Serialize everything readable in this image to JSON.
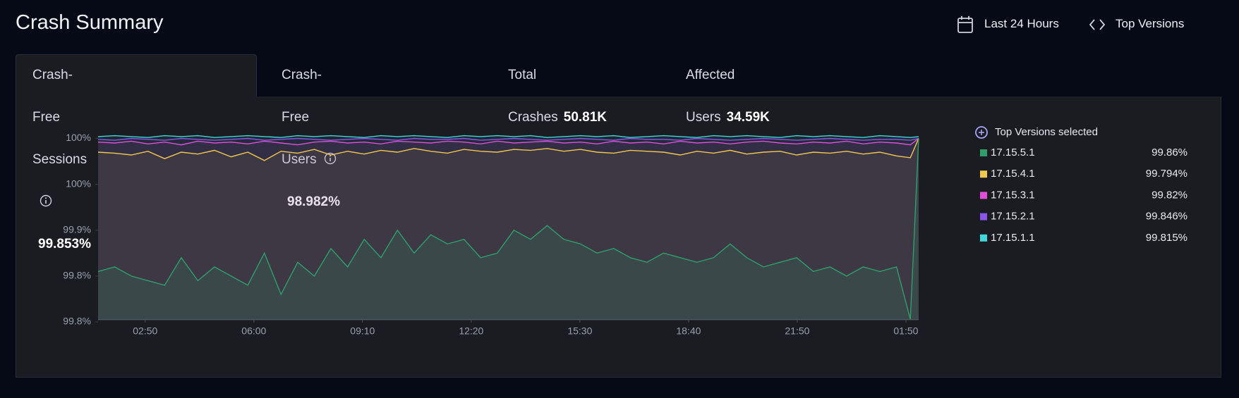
{
  "header": {
    "title": "Crash Summary",
    "time_range": "Last 24 Hours",
    "versions_button": "Top Versions"
  },
  "tabs": [
    {
      "label": "Crash-Free Sessions",
      "value": "99.853%"
    },
    {
      "label": "Crash-Free Users",
      "value": "98.982%"
    },
    {
      "label": "Total Crashes",
      "value": "50.81K"
    },
    {
      "label": "Affected Users",
      "value": "34.59K"
    }
  ],
  "legend_title": "Top Versions selected",
  "chart_data": {
    "type": "area",
    "x": [
      0,
      30,
      60,
      90,
      120,
      150,
      180,
      210,
      240,
      270,
      300,
      330,
      360,
      390,
      420,
      450,
      480,
      510,
      540,
      570,
      600,
      630,
      660,
      690,
      720,
      750,
      780,
      810,
      840,
      870,
      900,
      930,
      960,
      990,
      1020,
      1050,
      1080,
      1110,
      1140,
      1170,
      1200,
      1230,
      1260,
      1290,
      1320,
      1350,
      1380,
      1410,
      1440,
      1465,
      1480
    ],
    "xlim": [
      0,
      1480
    ],
    "xticks": [
      {
        "value": 85,
        "label": "02:50"
      },
      {
        "value": 281,
        "label": "06:00"
      },
      {
        "value": 477,
        "label": "09:10"
      },
      {
        "value": 673,
        "label": "12:20"
      },
      {
        "value": 869,
        "label": "15:30"
      },
      {
        "value": 1065,
        "label": "18:40"
      },
      {
        "value": 1261,
        "label": "21:50"
      },
      {
        "value": 1457,
        "label": "01:50"
      }
    ],
    "ylim": [
      99.8,
      100.005
    ],
    "yticks": [
      {
        "value": 100,
        "label": "100%"
      },
      {
        "value": 99.95,
        "label": "100%"
      },
      {
        "value": 99.9,
        "label": "99.9%"
      },
      {
        "value": 99.85,
        "label": "99.8%"
      },
      {
        "value": 99.8,
        "label": "99.8%"
      }
    ],
    "series": [
      {
        "name": "17.15.5.1",
        "color": "#2e9e6a",
        "legend_value": "99.86%",
        "values": [
          99.855,
          99.86,
          99.85,
          99.845,
          99.84,
          99.87,
          99.845,
          99.86,
          99.85,
          99.84,
          99.875,
          99.83,
          99.865,
          99.85,
          99.88,
          99.86,
          99.89,
          99.87,
          99.9,
          99.875,
          99.895,
          99.885,
          99.89,
          99.87,
          99.875,
          99.9,
          99.89,
          99.905,
          99.89,
          99.885,
          99.875,
          99.88,
          99.87,
          99.865,
          99.875,
          99.87,
          99.865,
          99.87,
          99.885,
          99.87,
          99.86,
          99.865,
          99.87,
          99.855,
          99.86,
          99.85,
          99.86,
          99.855,
          99.86,
          99.803,
          100
        ]
      },
      {
        "name": "17.15.4.1",
        "color": "#f2c94c",
        "legend_value": "99.794%",
        "values": [
          99.985,
          99.984,
          99.982,
          99.986,
          99.978,
          99.985,
          99.983,
          99.987,
          99.98,
          99.985,
          99.976,
          99.986,
          99.984,
          99.988,
          99.982,
          99.986,
          99.983,
          99.987,
          99.985,
          99.989,
          99.986,
          99.984,
          99.988,
          99.986,
          99.985,
          99.988,
          99.987,
          99.989,
          99.986,
          99.988,
          99.985,
          99.984,
          99.987,
          99.986,
          99.985,
          99.982,
          99.986,
          99.984,
          99.987,
          99.983,
          99.985,
          99.986,
          99.982,
          99.985,
          99.984,
          99.986,
          99.983,
          99.985,
          99.981,
          99.979,
          100
        ]
      },
      {
        "name": "17.15.3.1",
        "color": "#e04fd8",
        "legend_value": "99.82%",
        "values": [
          99.996,
          99.995,
          99.997,
          99.994,
          99.996,
          99.993,
          99.997,
          99.995,
          99.996,
          99.994,
          99.997,
          99.995,
          99.993,
          99.996,
          99.997,
          99.995,
          99.996,
          99.994,
          99.997,
          99.996,
          99.995,
          99.997,
          99.996,
          99.994,
          99.997,
          99.995,
          99.996,
          99.997,
          99.995,
          99.996,
          99.994,
          99.997,
          99.995,
          99.996,
          99.994,
          99.997,
          99.995,
          99.996,
          99.994,
          99.996,
          99.997,
          99.995,
          99.994,
          99.996,
          99.995,
          99.997,
          99.994,
          99.996,
          99.995,
          99.993,
          100
        ]
      },
      {
        "name": "17.15.2.1",
        "color": "#8a55e8",
        "legend_value": "99.846%",
        "values": [
          99.999,
          99.998,
          100,
          99.999,
          99.998,
          100,
          99.999,
          99.998,
          99.999,
          100,
          99.998,
          99.999,
          100,
          99.999,
          99.998,
          99.999,
          100,
          99.999,
          99.998,
          100,
          99.999,
          99.999,
          100,
          99.998,
          99.999,
          100,
          99.999,
          99.998,
          99.999,
          100,
          99.999,
          99.998,
          100,
          99.999,
          99.999,
          99.998,
          100,
          99.999,
          99.998,
          99.999,
          100,
          99.999,
          99.998,
          99.999,
          100,
          99.999,
          99.998,
          99.999,
          99.999,
          99.998,
          100
        ]
      },
      {
        "name": "17.15.1.1",
        "color": "#3fd6dc",
        "legend_value": "99.815%",
        "values": [
          100.002,
          100.003,
          100.002,
          100.001,
          100.003,
          100.002,
          100.003,
          100.001,
          100.002,
          100.003,
          100.002,
          100.001,
          100.003,
          100.002,
          100.003,
          100.002,
          100.001,
          100.003,
          100.002,
          100.003,
          100.002,
          100.001,
          100.003,
          100.002,
          100.003,
          100.002,
          100.003,
          100.001,
          100.002,
          100.003,
          100.002,
          100.003,
          100.001,
          100.002,
          100.003,
          100.002,
          100.001,
          100.003,
          100.002,
          100.003,
          100.002,
          100.001,
          100.003,
          100.002,
          100.003,
          100.002,
          100.001,
          100.003,
          100.002,
          100.001,
          100.002
        ]
      }
    ]
  }
}
